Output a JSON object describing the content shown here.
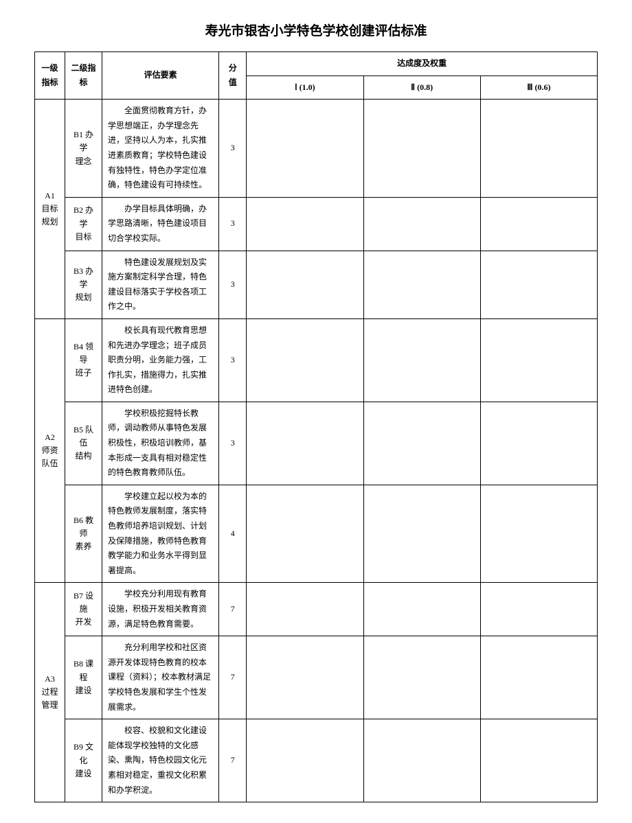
{
  "title": "寿光市银杏小学特色学校创建评估标准",
  "headers": {
    "level1": "一级指标",
    "level2": "二级指标",
    "criteria": "评估要素",
    "score": "分值",
    "weight_group": "达成度及权重",
    "weight1": "Ⅰ (1.0)",
    "weight2": "Ⅱ (0.8)",
    "weight3": "Ⅲ (0.6)"
  },
  "groups": [
    {
      "level1_code": "A1",
      "level1_name": "目标规划",
      "rows": [
        {
          "level2_code": "B1",
          "level2_name": "办学理念",
          "criteria": "全面贯彻教育方针，办学思想端正，办学理念先进，坚持以人为本，扎实推进素质教育；学校特色建设有独特性，特色办学定位准确，特色建设有可持续性。",
          "score": "3"
        },
        {
          "level2_code": "B2",
          "level2_name": "办学目标",
          "criteria": "办学目标具体明确，办学思路清晰，特色建设项目切合学校实际。",
          "score": "3"
        },
        {
          "level2_code": "B3",
          "level2_name": "办学规划",
          "criteria": "特色建设发展规划及实施方案制定科学合理，特色建设目标落实于学校各项工作之中。",
          "score": "3"
        }
      ]
    },
    {
      "level1_code": "A2",
      "level1_name": "师资队伍",
      "rows": [
        {
          "level2_code": "B4",
          "level2_name": "领导班子",
          "criteria": "校长具有现代教育思想和先进办学理念；班子成员职责分明，业务能力强，工作扎实，措施得力，扎实推进特色创建。",
          "score": "3"
        },
        {
          "level2_code": "B5",
          "level2_name": "队伍结构",
          "criteria": "学校积极挖掘特长教师，调动教师从事特色发展积极性，积极培训教师，基本形成一支具有相对稳定性的特色教育教师队伍。",
          "score": "3"
        },
        {
          "level2_code": "B6",
          "level2_name": "教师素养",
          "criteria": "学校建立起以校为本的特色教师发展制度，落实特色教师培养培训规划、计划及保障措施，教师特色教育教学能力和业务水平得到显著提高。",
          "score": "4"
        }
      ]
    },
    {
      "level1_code": "A3",
      "level1_name": "过程管理",
      "rows": [
        {
          "level2_code": "B7",
          "level2_name": "设施开发",
          "criteria": "学校充分利用现有教育设施，积极开发相关教育资源，满足特色教育需要。",
          "score": "7"
        },
        {
          "level2_code": "B8",
          "level2_name": "课程建设",
          "criteria": "充分利用学校和社区资源开发体现特色教育的校本课程（资料）；校本教材满足学校特色发展和学生个性发展需求。",
          "score": "7"
        },
        {
          "level2_code": "B9",
          "level2_name": "文化建设",
          "criteria": "校容、校貌和文化建设能体现学校独特的文化感染、熏陶，特色校园文化元素相对稳定，重视文化积累和办学积淀。",
          "score": "7"
        }
      ]
    }
  ],
  "style": {
    "background_color": "#ffffff",
    "text_color": "#000000",
    "border_color": "#000000",
    "title_fontsize": 19,
    "body_fontsize": 12,
    "font_family": "SimSun"
  }
}
